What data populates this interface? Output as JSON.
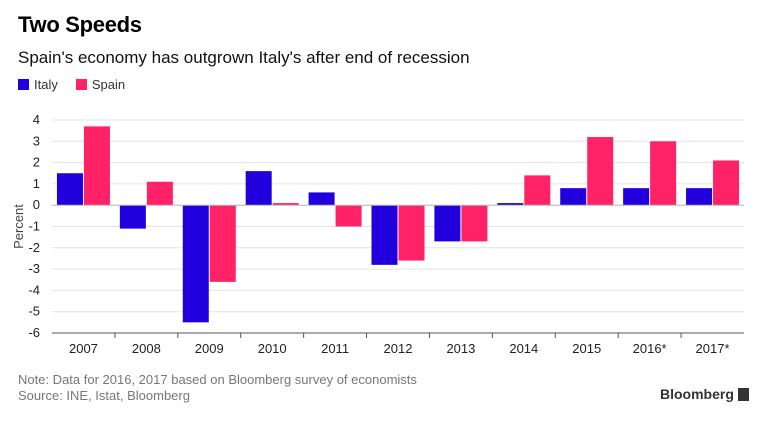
{
  "header": {
    "title": "Two Speeds",
    "subtitle": "Spain's economy has outgrown Italy's after end of recession"
  },
  "legend": {
    "items": [
      {
        "label": "Italy",
        "color": "#2200dd"
      },
      {
        "label": "Spain",
        "color": "#ff2266"
      }
    ]
  },
  "footer": {
    "note": "Note: Data for 2016, 2017 based on Bloomberg survey of economists",
    "source": "Source: INE, Istat, Bloomberg",
    "brand": "Bloomberg"
  },
  "chart_data": {
    "type": "bar",
    "title": "Two Speeds",
    "subtitle": "Spain's economy has outgrown Italy's after end of recession",
    "categories": [
      "2007",
      "2008",
      "2009",
      "2010",
      "2011",
      "2012",
      "2013",
      "2014",
      "2015",
      "2016*",
      "2017*"
    ],
    "series": [
      {
        "name": "Italy",
        "color": "#2200dd",
        "values": [
          1.5,
          -1.1,
          -5.5,
          1.6,
          0.6,
          -2.8,
          -1.7,
          0.1,
          0.8,
          0.8,
          0.8
        ]
      },
      {
        "name": "Spain",
        "color": "#ff2266",
        "values": [
          3.7,
          1.1,
          -3.6,
          0.1,
          -1.0,
          -2.6,
          -1.7,
          1.4,
          3.2,
          3.0,
          2.1
        ]
      }
    ],
    "xlabel": "",
    "ylabel": "Percent",
    "ylim": [
      -6,
      4
    ],
    "yticks": [
      4,
      3,
      2,
      1,
      0,
      -1,
      -2,
      -3,
      -4,
      -5,
      -6
    ],
    "grid": true,
    "legend_position": "top-left"
  }
}
